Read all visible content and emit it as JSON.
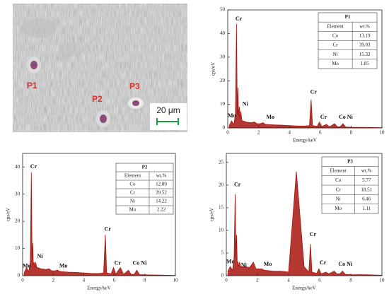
{
  "sem_image": {
    "labels": [
      "P1",
      "P2",
      "P3"
    ],
    "scale_bar": "20 μm"
  },
  "chart_data": [
    {
      "type": "line",
      "xlabel": "Energy/keV",
      "ylabel": "cps/eV",
      "color": "#a8140e",
      "xlim": [
        0,
        10
      ],
      "ylim": [
        0,
        50
      ],
      "xticks": [
        0,
        2,
        4,
        6,
        8,
        10
      ],
      "yticks": [
        0,
        10,
        20,
        30,
        40,
        50
      ],
      "x": [
        0.1,
        0.25,
        0.4,
        0.5,
        0.57,
        0.62,
        0.66,
        0.7,
        0.75,
        0.8,
        0.85,
        0.92,
        1.0,
        1.2,
        1.5,
        1.74,
        1.9,
        2.1,
        2.29,
        2.45,
        3,
        3.5,
        4,
        4.5,
        5,
        5.3,
        5.41,
        5.5,
        5.8,
        5.95,
        6.1,
        6.4,
        6.6,
        6.93,
        7.1,
        7.3,
        7.47,
        7.65,
        8,
        9,
        10
      ],
      "values": [
        1,
        3,
        1.5,
        6,
        44,
        6,
        17,
        5,
        9,
        4,
        7,
        3,
        3,
        2.5,
        2.2,
        2.5,
        1.8,
        1.8,
        2.2,
        1.5,
        1.3,
        1.2,
        1,
        0.8,
        0.8,
        1,
        12,
        1,
        0.7,
        2.5,
        0.6,
        1.5,
        0.5,
        1.8,
        0.5,
        0.5,
        1.8,
        0.4,
        0.3,
        0.2,
        0.1
      ],
      "annotations": [
        "Cr",
        "Ni",
        "Mo",
        "Mo",
        "Cr",
        "Cr",
        "Co Ni"
      ],
      "table": {
        "title": "P1",
        "columns": [
          "Element",
          "wt.%"
        ],
        "rows": [
          [
            "Co",
            13.19
          ],
          [
            "Cr",
            39.03
          ],
          [
            "Ni",
            15.32
          ],
          [
            "Mo",
            1.85
          ]
        ]
      }
    },
    {
      "type": "line",
      "xlabel": "Energy/keV",
      "ylabel": "cps/eV",
      "color": "#a8140e",
      "xlim": [
        0,
        10
      ],
      "ylim": [
        0,
        45
      ],
      "xticks": [
        0,
        2,
        4,
        6,
        8,
        10
      ],
      "yticks": [
        0,
        10,
        20,
        30,
        40
      ],
      "x": [
        0.1,
        0.25,
        0.4,
        0.5,
        0.57,
        0.62,
        0.66,
        0.7,
        0.75,
        0.8,
        0.85,
        0.92,
        1.0,
        1.2,
        1.5,
        1.74,
        1.9,
        2.1,
        2.29,
        2.45,
        3,
        3.5,
        4,
        4.5,
        5,
        5.3,
        5.41,
        5.5,
        5.8,
        5.95,
        6.1,
        6.4,
        6.6,
        6.93,
        7.1,
        7.3,
        7.47,
        7.65,
        8,
        9,
        10
      ],
      "values": [
        1,
        3,
        1.5,
        5,
        38,
        6,
        12,
        4,
        5,
        3,
        5,
        3,
        3,
        2.5,
        2.3,
        2.5,
        1.8,
        1.8,
        2,
        1.5,
        1.3,
        1.2,
        1,
        0.8,
        0.8,
        1,
        15,
        1,
        0.7,
        3,
        0.6,
        3,
        0.5,
        2,
        0.5,
        0.5,
        2,
        0.4,
        0.3,
        0.2,
        0.1
      ],
      "annotations": [
        "Cr",
        "Ni",
        "Mo",
        "Mo",
        "Cr",
        "Cr",
        "Co Ni"
      ],
      "table": {
        "title": "P2",
        "columns": [
          "Element",
          "wt.%"
        ],
        "rows": [
          [
            "Co",
            12.89
          ],
          [
            "Cr",
            39.52
          ],
          [
            "Ni",
            14.22
          ],
          [
            "Mo",
            2.22
          ]
        ]
      }
    },
    {
      "type": "line",
      "xlabel": "Energy/keV",
      "ylabel": "cps/eV",
      "color": "#a8140e",
      "xlim": [
        0,
        10
      ],
      "ylim": [
        0,
        27
      ],
      "xticks": [
        0,
        2,
        4,
        6,
        8,
        10
      ],
      "yticks": [
        0,
        5,
        10,
        15,
        20,
        25
      ],
      "x": [
        0.1,
        0.25,
        0.4,
        0.5,
        0.57,
        0.62,
        0.66,
        0.7,
        0.75,
        0.8,
        0.85,
        0.92,
        1.0,
        1.2,
        1.5,
        1.74,
        1.9,
        2.1,
        2.29,
        2.45,
        3,
        3.5,
        4,
        4.5,
        5,
        5.3,
        5.41,
        5.5,
        5.8,
        5.95,
        6.1,
        6.4,
        6.6,
        6.93,
        7.1,
        7.3,
        7.47,
        7.65,
        8,
        9,
        10
      ],
      "values": [
        1,
        2,
        1.2,
        4,
        18,
        4,
        9,
        3,
        3,
        2,
        3,
        2,
        2,
        2,
        1.8,
        3,
        1.5,
        1.5,
        1.5,
        1.2,
        1,
        1,
        0.8,
        23,
        2,
        0.8,
        7,
        0.8,
        0.5,
        1.5,
        0.4,
        0.8,
        0.4,
        1,
        0.4,
        0.4,
        1,
        0.3,
        0.2,
        0.2,
        0.1
      ],
      "annotations": [
        "Cr",
        "Mo",
        "Ni",
        "Mo",
        "Cr",
        "Cr",
        "Co Ni"
      ],
      "table": {
        "title": "P3",
        "columns": [
          "Element",
          "wt.%"
        ],
        "rows": [
          [
            "Co",
            5.77
          ],
          [
            "Cr",
            18.51
          ],
          [
            "Ni",
            6.46
          ],
          [
            "Mo",
            1.11
          ]
        ]
      }
    }
  ]
}
